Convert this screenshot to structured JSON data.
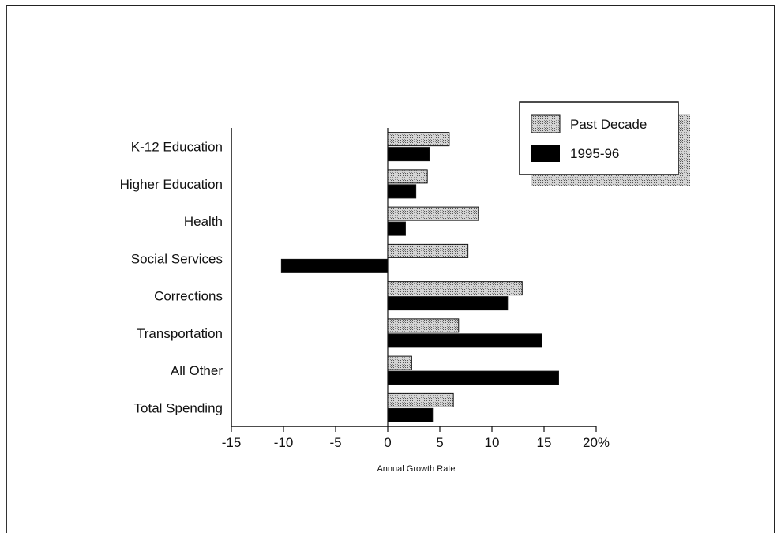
{
  "chart_data": {
    "type": "bar",
    "orientation": "horizontal",
    "categories": [
      "K-12 Education",
      "Higher Education",
      "Health",
      "Social Services",
      "Corrections",
      "Transportation",
      "All Other",
      "Total Spending"
    ],
    "series": [
      {
        "name": "Past Decade",
        "values": [
          5.9,
          3.8,
          8.7,
          7.7,
          12.9,
          6.8,
          2.3,
          6.3
        ],
        "color": "#b9b9b9",
        "pattern": "stipple"
      },
      {
        "name": "1995-96",
        "values": [
          4.0,
          2.7,
          1.7,
          -10.2,
          11.5,
          14.8,
          16.4,
          4.3
        ],
        "color": "#000000"
      }
    ],
    "xlabel": "Annual Growth Rate",
    "xlim": [
      -15,
      20
    ],
    "xticks": [
      "-15",
      "-10",
      "-5",
      "0",
      "5",
      "10",
      "15",
      "20%"
    ],
    "grid": false,
    "legend_position": "top-right"
  }
}
